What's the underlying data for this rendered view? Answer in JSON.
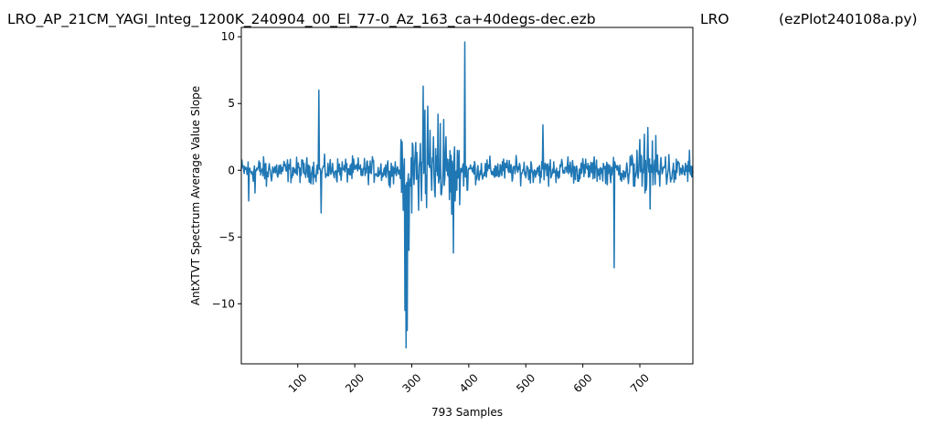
{
  "header": {
    "title_file": "LRO_AP_21CM_YAGI_Integ_1200K_240904_00_El_77-0_Az_163_ca+40degs-dec.ezb",
    "title_site": "LRO",
    "title_script": "(ezPlot240108a.py)"
  },
  "chart_data": {
    "type": "line",
    "xlabel": "793 Samples",
    "ylabel": "AntXTVT Spectrum Average Value Slope",
    "xlim": [
      1,
      793
    ],
    "ylim": [
      -14.5,
      10.7
    ],
    "x_ticks": [
      100,
      200,
      300,
      400,
      500,
      600,
      700
    ],
    "x_tick_labels": [
      "100",
      "200",
      "300",
      "400",
      "500",
      "600",
      "700"
    ],
    "y_ticks": [
      10,
      5,
      0,
      -5,
      -10
    ],
    "y_tick_labels": [
      "10",
      "5",
      "0",
      "−5",
      "−10"
    ],
    "grid": false,
    "color": "#1f77b4",
    "sample_count": 793,
    "baseline_noise": 0.45,
    "features": [
      {
        "x": 14,
        "y": -2.3
      },
      {
        "x": 25,
        "y": -1.7
      },
      {
        "x": 45,
        "y": -1.2
      },
      {
        "x": 137,
        "y": 6.0
      },
      {
        "x": 141,
        "y": -3.2
      },
      {
        "x": 285,
        "y": -3.0
      },
      {
        "x": 288,
        "y": -10.5
      },
      {
        "x": 290,
        "y": -13.3
      },
      {
        "x": 292,
        "y": -12.0
      },
      {
        "x": 295,
        "y": -6.0
      },
      {
        "x": 300,
        "y": -3.2
      },
      {
        "x": 306,
        "y": 1.2
      },
      {
        "x": 312,
        "y": -3.0
      },
      {
        "x": 315,
        "y": 2.0
      },
      {
        "x": 320,
        "y": 6.3
      },
      {
        "x": 323,
        "y": 4.5
      },
      {
        "x": 326,
        "y": -2.8
      },
      {
        "x": 328,
        "y": 4.8
      },
      {
        "x": 332,
        "y": 3.0
      },
      {
        "x": 335,
        "y": -1.5
      },
      {
        "x": 338,
        "y": 2.5
      },
      {
        "x": 341,
        "y": -2.0
      },
      {
        "x": 346,
        "y": 4.2
      },
      {
        "x": 350,
        "y": 3.5
      },
      {
        "x": 353,
        "y": -1.3
      },
      {
        "x": 356,
        "y": 3.8
      },
      {
        "x": 360,
        "y": 2.5
      },
      {
        "x": 366,
        "y": -2.2
      },
      {
        "x": 370,
        "y": -3.3
      },
      {
        "x": 373,
        "y": -6.2
      },
      {
        "x": 376,
        "y": -2.3
      },
      {
        "x": 380,
        "y": 1.5
      },
      {
        "x": 385,
        "y": -0.8
      },
      {
        "x": 393,
        "y": 9.6
      },
      {
        "x": 397,
        "y": -1.5
      },
      {
        "x": 530,
        "y": 3.4
      },
      {
        "x": 540,
        "y": -1.2
      },
      {
        "x": 574,
        "y": 1.0
      },
      {
        "x": 640,
        "y": -1.0
      },
      {
        "x": 655,
        "y": -7.3
      },
      {
        "x": 680,
        "y": -1.0
      },
      {
        "x": 695,
        "y": 1.5
      },
      {
        "x": 700,
        "y": 2.3
      },
      {
        "x": 704,
        "y": -1.2
      },
      {
        "x": 708,
        "y": 2.7
      },
      {
        "x": 711,
        "y": -1.5
      },
      {
        "x": 714,
        "y": 3.2
      },
      {
        "x": 718,
        "y": -2.9
      },
      {
        "x": 722,
        "y": 2.2
      },
      {
        "x": 728,
        "y": 2.6
      },
      {
        "x": 735,
        "y": -1.2
      },
      {
        "x": 745,
        "y": 1.0
      },
      {
        "x": 760,
        "y": -0.9
      },
      {
        "x": 787,
        "y": 1.5
      },
      {
        "x": 791,
        "y": -0.5
      }
    ]
  }
}
